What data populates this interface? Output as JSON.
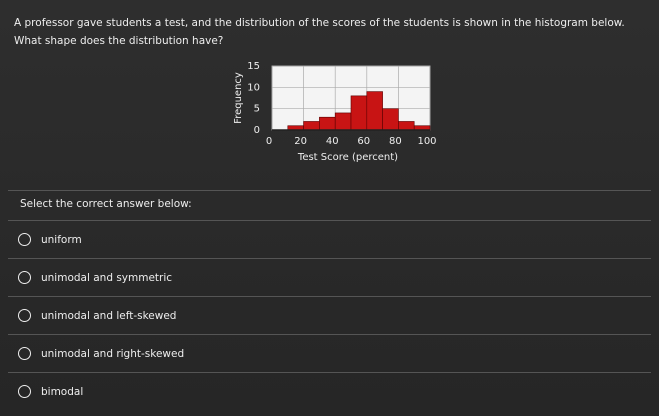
{
  "question": "A professor gave students a test, and the distribution of the scores of the students is shown in the histogram below. What shape does the distribution have?",
  "chart_data": {
    "type": "histogram",
    "xlabel": "Test Score (percent)",
    "ylabel": "Frequency",
    "bins": [
      0,
      10,
      20,
      30,
      40,
      50,
      60,
      70,
      80,
      90,
      100
    ],
    "values": [
      0,
      1,
      2,
      3,
      4,
      8,
      9,
      5,
      2,
      1
    ],
    "color": "#c81414",
    "xlim": [
      0,
      100
    ],
    "xticks": [
      0,
      20,
      40,
      60,
      80,
      100
    ],
    "ylim": [
      0,
      15
    ],
    "yticks": [
      0,
      5,
      10,
      15
    ],
    "grid": true
  },
  "prompt": "Select the correct answer below:",
  "options": [
    "uniform",
    "unimodal and symmetric",
    "unimodal and left-skewed",
    "unimodal and right-skewed",
    "bimodal"
  ]
}
